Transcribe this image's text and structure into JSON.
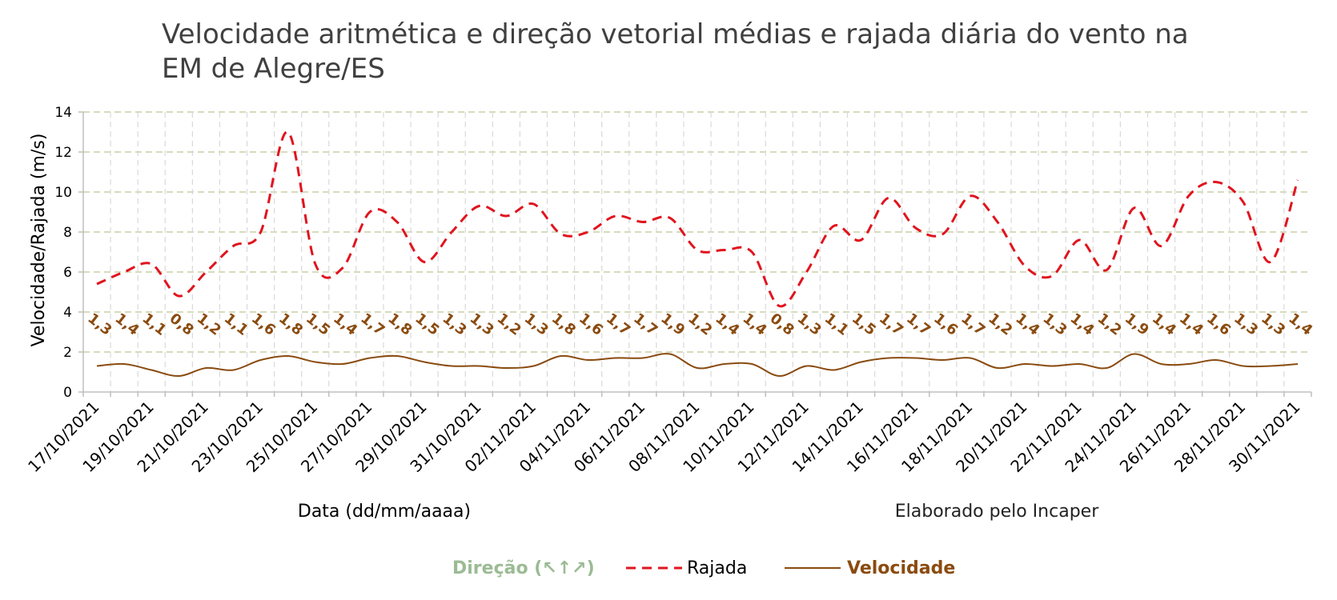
{
  "chart_data": {
    "type": "line",
    "title": "Velocidade aritmética e direção vetorial médias e rajada diária do vento na EM de Alegre/ES",
    "title_lines": [
      "Velocidade aritmética e direção vetorial médias e rajada diária do vento na",
      "EM de Alegre/ES"
    ],
    "xlabel": "Data (dd/mm/aaaa)",
    "ylabel": "Velocidade/Rajada (m/s)",
    "credit": "Elaborado pelo Incaper",
    "ylim": [
      0,
      14
    ],
    "yticks": [
      "0",
      "2",
      "4",
      "6",
      "8",
      "10",
      "12",
      "14"
    ],
    "grid": true,
    "legend_position": "bottom",
    "legend": {
      "direction_label": "Direção (↖↑↗)",
      "direction_color": "#9bbb94",
      "gust_label": "Rajada",
      "speed_label": "Velocidade"
    },
    "colors": {
      "gust": "#e0141e",
      "speed": "#8a4b0f",
      "grid": "#c8cfa5",
      "axis": "#bfbfbf"
    },
    "x": [
      "17/10/2021",
      "18/10/2021",
      "19/10/2021",
      "20/10/2021",
      "21/10/2021",
      "22/10/2021",
      "23/10/2021",
      "24/10/2021",
      "25/10/2021",
      "26/10/2021",
      "27/10/2021",
      "28/10/2021",
      "29/10/2021",
      "30/10/2021",
      "31/10/2021",
      "01/11/2021",
      "02/11/2021",
      "03/11/2021",
      "04/11/2021",
      "05/11/2021",
      "06/11/2021",
      "07/11/2021",
      "08/11/2021",
      "09/11/2021",
      "10/11/2021",
      "11/11/2021",
      "12/11/2021",
      "13/11/2021",
      "14/11/2021",
      "15/11/2021",
      "16/11/2021",
      "17/11/2021",
      "18/11/2021",
      "19/11/2021",
      "20/11/2021",
      "21/11/2021",
      "22/11/2021",
      "23/11/2021",
      "24/11/2021",
      "25/11/2021",
      "26/11/2021",
      "27/11/2021",
      "28/11/2021",
      "29/11/2021",
      "30/11/2021"
    ],
    "x_tick_labels": [
      "17/10/2021",
      "19/10/2021",
      "21/10/2021",
      "23/10/2021",
      "25/10/2021",
      "27/10/2021",
      "29/10/2021",
      "31/10/2021",
      "02/11/2021",
      "04/11/2021",
      "06/11/2021",
      "08/11/2021",
      "10/11/2021",
      "12/11/2021",
      "14/11/2021",
      "16/11/2021",
      "18/11/2021",
      "20/11/2021",
      "22/11/2021",
      "24/11/2021",
      "26/11/2021",
      "28/11/2021",
      "30/11/2021"
    ],
    "series": [
      {
        "name": "Rajada",
        "values": [
          5.4,
          6.0,
          6.4,
          4.8,
          6.0,
          7.3,
          8.0,
          13.0,
          6.4,
          6.2,
          9.0,
          8.5,
          6.5,
          8.0,
          9.3,
          8.8,
          9.4,
          7.9,
          8.0,
          8.8,
          8.5,
          8.7,
          7.1,
          7.1,
          7.0,
          4.3,
          6.0,
          8.3,
          7.6,
          9.7,
          8.2,
          7.9,
          9.8,
          8.5,
          6.3,
          5.8,
          7.6,
          6.1,
          9.2,
          7.3,
          9.8,
          10.5,
          9.5,
          6.5,
          10.6
        ]
      },
      {
        "name": "Velocidade",
        "values": [
          1.3,
          1.4,
          1.1,
          0.8,
          1.2,
          1.1,
          1.6,
          1.8,
          1.5,
          1.4,
          1.7,
          1.8,
          1.5,
          1.3,
          1.3,
          1.2,
          1.3,
          1.8,
          1.6,
          1.7,
          1.7,
          1.9,
          1.2,
          1.4,
          1.4,
          0.8,
          1.3,
          1.1,
          1.5,
          1.7,
          1.7,
          1.6,
          1.7,
          1.2,
          1.4,
          1.3,
          1.4,
          1.2,
          1.9,
          1.4,
          1.4,
          1.6,
          1.3,
          1.3,
          1.4
        ],
        "data_labels": [
          "1,3",
          "1,4",
          "1,1",
          "0,8",
          "1,2",
          "1,1",
          "1,6",
          "1,8",
          "1,5",
          "1,4",
          "1,7",
          "1,8",
          "1,5",
          "1,3",
          "1,3",
          "1,2",
          "1,3",
          "1,8",
          "1,6",
          "1,7",
          "1,7",
          "1,9",
          "1,2",
          "1,4",
          "1,4",
          "0,8",
          "1,3",
          "1,1",
          "1,5",
          "1,7",
          "1,7",
          "1,6",
          "1,7",
          "1,2",
          "1,4",
          "1,3",
          "1,4",
          "1,2",
          "1,9",
          "1,4",
          "1,4",
          "1,6",
          "1,3",
          "1,3",
          "1,4"
        ]
      }
    ]
  }
}
